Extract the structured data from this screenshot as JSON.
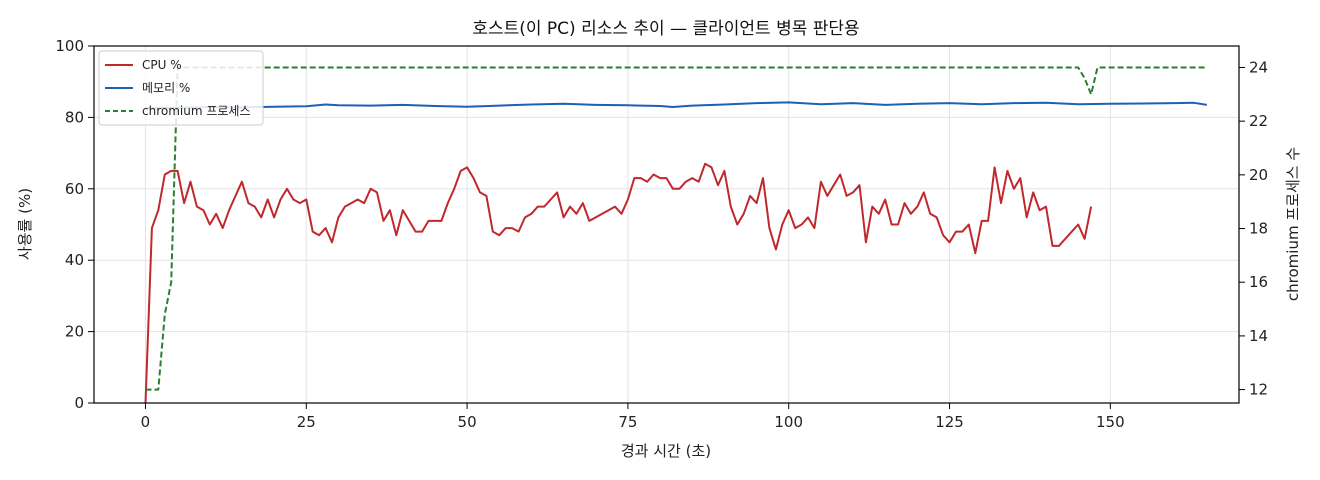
{
  "chart_data": {
    "type": "line",
    "title": "호스트(이 PC) 리소스 추이 — 클라이언트 병목 판단용",
    "xlabel": "경과 시간 (초)",
    "ylabel": "사용률 (%)",
    "y2label": "chromium 프로세스 수",
    "xlim": [
      -8,
      170
    ],
    "ylim": [
      0,
      100
    ],
    "y2lim": [
      11.5,
      24.8
    ],
    "x_ticks": [
      0,
      25,
      50,
      75,
      100,
      125,
      150
    ],
    "y_ticks": [
      0,
      20,
      40,
      60,
      80,
      100
    ],
    "y2_ticks": [
      12,
      14,
      16,
      18,
      20,
      22,
      24
    ],
    "grid": true,
    "legend_position": "upper-left",
    "series": [
      {
        "name": "CPU %",
        "axis": "left",
        "color": "#c0282d",
        "style": "solid",
        "points": [
          [
            0,
            0
          ],
          [
            1,
            49
          ],
          [
            2,
            54
          ],
          [
            3,
            64
          ],
          [
            4,
            65
          ],
          [
            5,
            65
          ],
          [
            6,
            56
          ],
          [
            7,
            62
          ],
          [
            8,
            55
          ],
          [
            9,
            54
          ],
          [
            10,
            50
          ],
          [
            11,
            53
          ],
          [
            12,
            49
          ],
          [
            13,
            54
          ],
          [
            14,
            58
          ],
          [
            15,
            62
          ],
          [
            16,
            56
          ],
          [
            17,
            55
          ],
          [
            18,
            52
          ],
          [
            19,
            57
          ],
          [
            20,
            52
          ],
          [
            21,
            57
          ],
          [
            22,
            60
          ],
          [
            23,
            57
          ],
          [
            24,
            56
          ],
          [
            25,
            57
          ],
          [
            26,
            48
          ],
          [
            27,
            47
          ],
          [
            28,
            49
          ],
          [
            29,
            45
          ],
          [
            30,
            52
          ],
          [
            31,
            55
          ],
          [
            32,
            56
          ],
          [
            33,
            57
          ],
          [
            34,
            56
          ],
          [
            35,
            60
          ],
          [
            36,
            59
          ],
          [
            37,
            51
          ],
          [
            38,
            54
          ],
          [
            39,
            47
          ],
          [
            40,
            54
          ],
          [
            41,
            51
          ],
          [
            42,
            48
          ],
          [
            43,
            48
          ],
          [
            44,
            51
          ],
          [
            45,
            51
          ],
          [
            46,
            51
          ],
          [
            47,
            56
          ],
          [
            48,
            60
          ],
          [
            49,
            65
          ],
          [
            50,
            66
          ],
          [
            51,
            63
          ],
          [
            52,
            59
          ],
          [
            53,
            58
          ],
          [
            54,
            48
          ],
          [
            55,
            47
          ],
          [
            56,
            49
          ],
          [
            57,
            49
          ],
          [
            58,
            48
          ],
          [
            59,
            52
          ],
          [
            60,
            53
          ],
          [
            61,
            55
          ],
          [
            62,
            55
          ],
          [
            63,
            57
          ],
          [
            64,
            59
          ],
          [
            65,
            52
          ],
          [
            66,
            55
          ],
          [
            67,
            53
          ],
          [
            68,
            56
          ],
          [
            69,
            51
          ],
          [
            70,
            52
          ],
          [
            71,
            53
          ],
          [
            72,
            54
          ],
          [
            73,
            55
          ],
          [
            74,
            53
          ],
          [
            75,
            57
          ],
          [
            76,
            63
          ],
          [
            77,
            63
          ],
          [
            78,
            62
          ],
          [
            79,
            64
          ],
          [
            80,
            63
          ],
          [
            81,
            63
          ],
          [
            82,
            60
          ],
          [
            83,
            60
          ],
          [
            84,
            62
          ],
          [
            85,
            63
          ],
          [
            86,
            62
          ],
          [
            87,
            67
          ],
          [
            88,
            66
          ],
          [
            89,
            61
          ],
          [
            90,
            65
          ],
          [
            91,
            55
          ],
          [
            92,
            50
          ],
          [
            93,
            53
          ],
          [
            94,
            58
          ],
          [
            95,
            56
          ],
          [
            96,
            63
          ],
          [
            97,
            49
          ],
          [
            98,
            43
          ],
          [
            99,
            50
          ],
          [
            100,
            54
          ],
          [
            101,
            49
          ],
          [
            102,
            50
          ],
          [
            103,
            52
          ],
          [
            104,
            49
          ],
          [
            105,
            62
          ],
          [
            106,
            58
          ],
          [
            107,
            61
          ],
          [
            108,
            64
          ],
          [
            109,
            58
          ],
          [
            110,
            59
          ],
          [
            111,
            61
          ],
          [
            112,
            45
          ],
          [
            113,
            55
          ],
          [
            114,
            53
          ],
          [
            115,
            57
          ],
          [
            116,
            50
          ],
          [
            117,
            50
          ],
          [
            118,
            56
          ],
          [
            119,
            53
          ],
          [
            120,
            55
          ],
          [
            121,
            59
          ],
          [
            122,
            53
          ],
          [
            123,
            52
          ],
          [
            124,
            47
          ],
          [
            125,
            45
          ],
          [
            126,
            48
          ],
          [
            127,
            48
          ],
          [
            128,
            50
          ],
          [
            129,
            42
          ],
          [
            130,
            51
          ],
          [
            131,
            51
          ],
          [
            132,
            66
          ],
          [
            133,
            56
          ],
          [
            134,
            65
          ],
          [
            135,
            60
          ],
          [
            136,
            63
          ],
          [
            137,
            52
          ],
          [
            138,
            59
          ],
          [
            139,
            54
          ],
          [
            140,
            55
          ],
          [
            141,
            44
          ],
          [
            142,
            44
          ],
          [
            143,
            46
          ],
          [
            144,
            48
          ],
          [
            145,
            50
          ],
          [
            146,
            46
          ],
          [
            147,
            55
          ]
        ]
      },
      {
        "name": "메모리 %",
        "axis": "left",
        "color": "#1f5fb4",
        "style": "solid",
        "points": [
          [
            0,
            82.6
          ],
          [
            5,
            82.7
          ],
          [
            10,
            82.9
          ],
          [
            15,
            82.8
          ],
          [
            20,
            83.0
          ],
          [
            25,
            83.1
          ],
          [
            28,
            83.6
          ],
          [
            30,
            83.4
          ],
          [
            35,
            83.3
          ],
          [
            40,
            83.5
          ],
          [
            45,
            83.2
          ],
          [
            50,
            83.0
          ],
          [
            55,
            83.3
          ],
          [
            60,
            83.6
          ],
          [
            65,
            83.8
          ],
          [
            70,
            83.5
          ],
          [
            75,
            83.4
          ],
          [
            80,
            83.2
          ],
          [
            82,
            82.9
          ],
          [
            85,
            83.3
          ],
          [
            90,
            83.6
          ],
          [
            95,
            84.0
          ],
          [
            100,
            84.2
          ],
          [
            105,
            83.7
          ],
          [
            110,
            84.0
          ],
          [
            115,
            83.5
          ],
          [
            120,
            83.8
          ],
          [
            125,
            84.0
          ],
          [
            130,
            83.7
          ],
          [
            135,
            84.0
          ],
          [
            140,
            84.1
          ],
          [
            145,
            83.7
          ],
          [
            150,
            83.8
          ],
          [
            155,
            83.9
          ],
          [
            160,
            84.0
          ],
          [
            163,
            84.1
          ],
          [
            165,
            83.5
          ]
        ]
      },
      {
        "name": "chromium 프로세스",
        "axis": "right",
        "color": "#2e7d32",
        "style": "dashed",
        "points": [
          [
            0,
            12
          ],
          [
            2,
            12
          ],
          [
            3,
            14.8
          ],
          [
            4,
            16
          ],
          [
            5,
            24
          ],
          [
            6,
            24
          ],
          [
            145,
            24
          ],
          [
            146,
            23.6
          ],
          [
            147,
            23
          ],
          [
            148,
            24
          ],
          [
            165,
            24
          ]
        ]
      }
    ]
  }
}
